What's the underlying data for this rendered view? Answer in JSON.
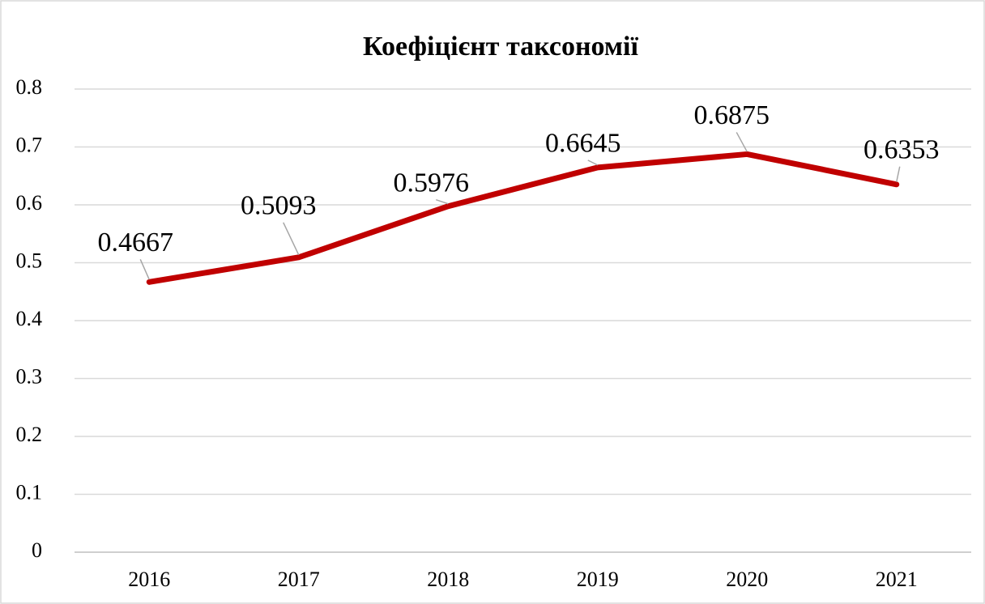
{
  "chart_data": {
    "type": "line",
    "title": "Коефіцієнт таксономії",
    "categories": [
      "2016",
      "2017",
      "2018",
      "2019",
      "2020",
      "2021"
    ],
    "series": [
      {
        "name": "Коефіцієнт таксономії",
        "color": "#c00000",
        "values": [
          0.4667,
          0.5093,
          0.5976,
          0.6645,
          0.6875,
          0.6353
        ]
      }
    ],
    "ylim": [
      0,
      0.8
    ],
    "yticks": [
      0,
      0.1,
      0.2,
      0.3,
      0.4,
      0.5,
      0.6,
      0.7,
      0.8
    ],
    "grid": true,
    "data_labels": true
  }
}
